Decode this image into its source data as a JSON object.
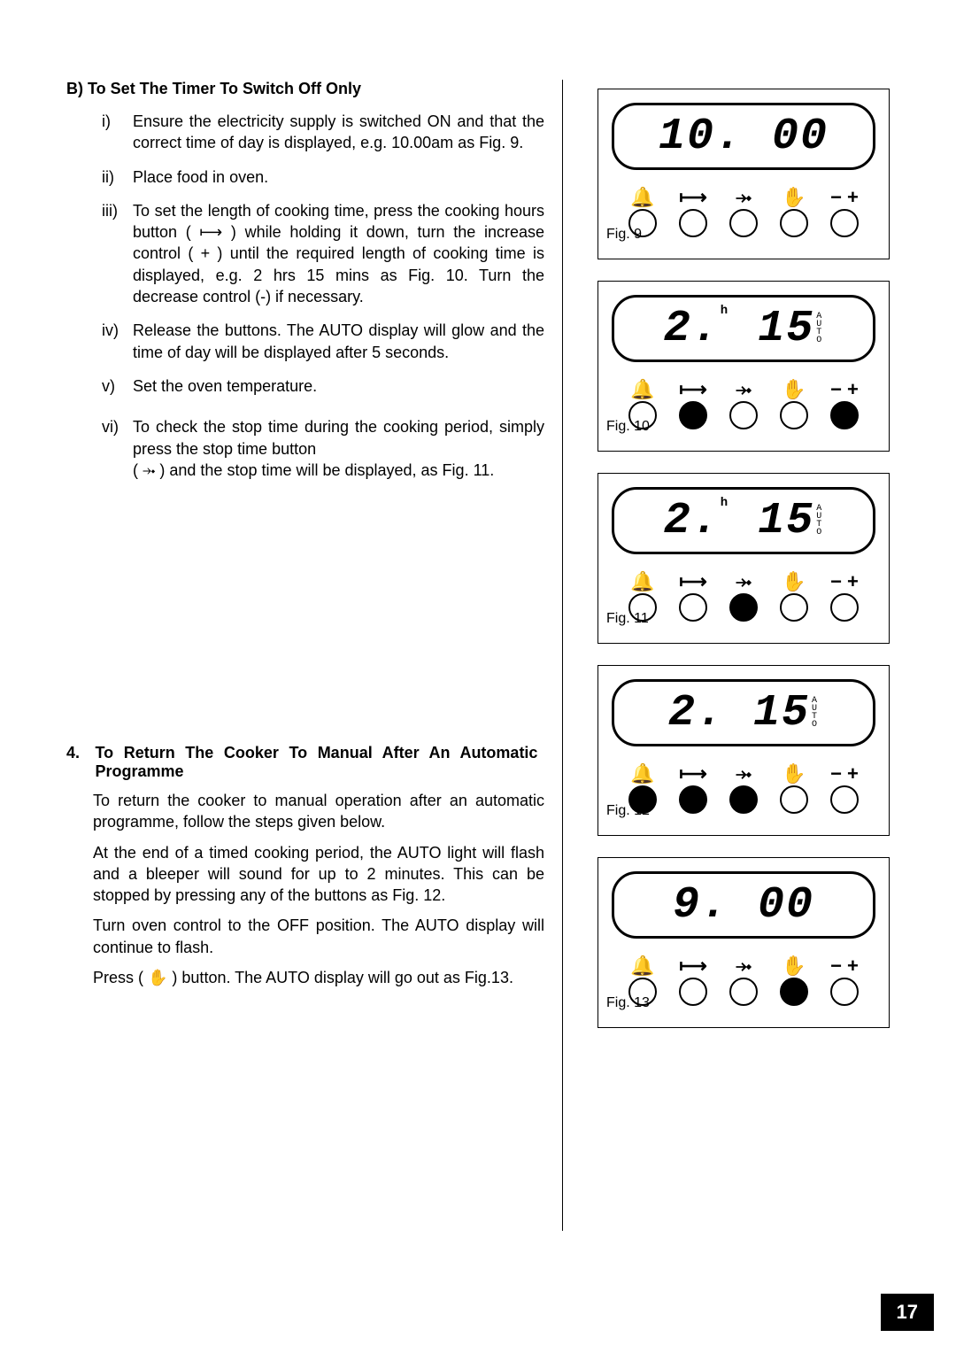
{
  "sectionB": {
    "heading_prefix": "B)",
    "heading": "To Set The Timer To Switch Off Only",
    "items": [
      {
        "num": "i)",
        "text": "Ensure the electricity supply is switched ON and that the correct time of day is displayed, e.g. 10.00am as Fig. 9."
      },
      {
        "num": "ii)",
        "text": "Place food  in oven."
      },
      {
        "num": "iii)",
        "text": "To set the length of cooking  time, press the cooking hours button ( ⟼ ) while holding it down, turn the  increase control ( + ) until the required length of cooking time is displayed, e.g. 2 hrs 15 mins as Fig. 10. Turn the decrease control (-) if necessary."
      },
      {
        "num": "iv)",
        "text": "Release the buttons. The AUTO display will glow and the time of day will be displayed after 5 seconds."
      },
      {
        "num": "v)",
        "text": "Set the oven temperature."
      },
      {
        "num": "vi)",
        "text_a": "To check the stop time during  the cooking period,  simply  press  the stop time button",
        "text_b": "( ⤞ ) and the stop time will be displayed, as Fig. 11."
      }
    ]
  },
  "section4": {
    "num": "4.",
    "title": "To Return The Cooker To Manual After An Automatic Programme",
    "paras": [
      "To return the cooker to manual operation after an automatic programme,  follow the steps given below.",
      "At the end of a timed cooking period, the AUTO light will flash and a bleeper will sound for up to 2 minutes. This can be stopped by pressing any of the buttons as Fig. 12.",
      "Turn oven control to the OFF position. The AUTO display will continue to flash.",
      "Press ( ✋ ) button. The AUTO display will go out  as Fig.13."
    ]
  },
  "figures": [
    {
      "label": "Fig. 9",
      "display": "10. 00",
      "auto": false,
      "pressed": [
        false,
        false,
        false,
        false,
        false
      ]
    },
    {
      "label": "Fig. 10",
      "display": "2. 15",
      "auto": true,
      "h_mark": true,
      "pressed": [
        false,
        true,
        false,
        false,
        true
      ]
    },
    {
      "label": "Fig. 11",
      "display": "2. 15",
      "auto": true,
      "h_mark": true,
      "pressed": [
        false,
        false,
        true,
        false,
        false
      ]
    },
    {
      "label": "Fig. 12",
      "display": "2. 15",
      "auto": true,
      "pressed": [
        true,
        true,
        true,
        false,
        false
      ]
    },
    {
      "label": "Fig. 13",
      "display": "9. 00",
      "auto": false,
      "pressed": [
        false,
        false,
        false,
        true,
        false
      ]
    }
  ],
  "buttons": {
    "symbols": [
      "🔔",
      "⟼",
      "⤞",
      "✋",
      "− +"
    ]
  },
  "page_number": "17",
  "colors": {
    "bg": "#ffffff",
    "fg": "#000000"
  }
}
